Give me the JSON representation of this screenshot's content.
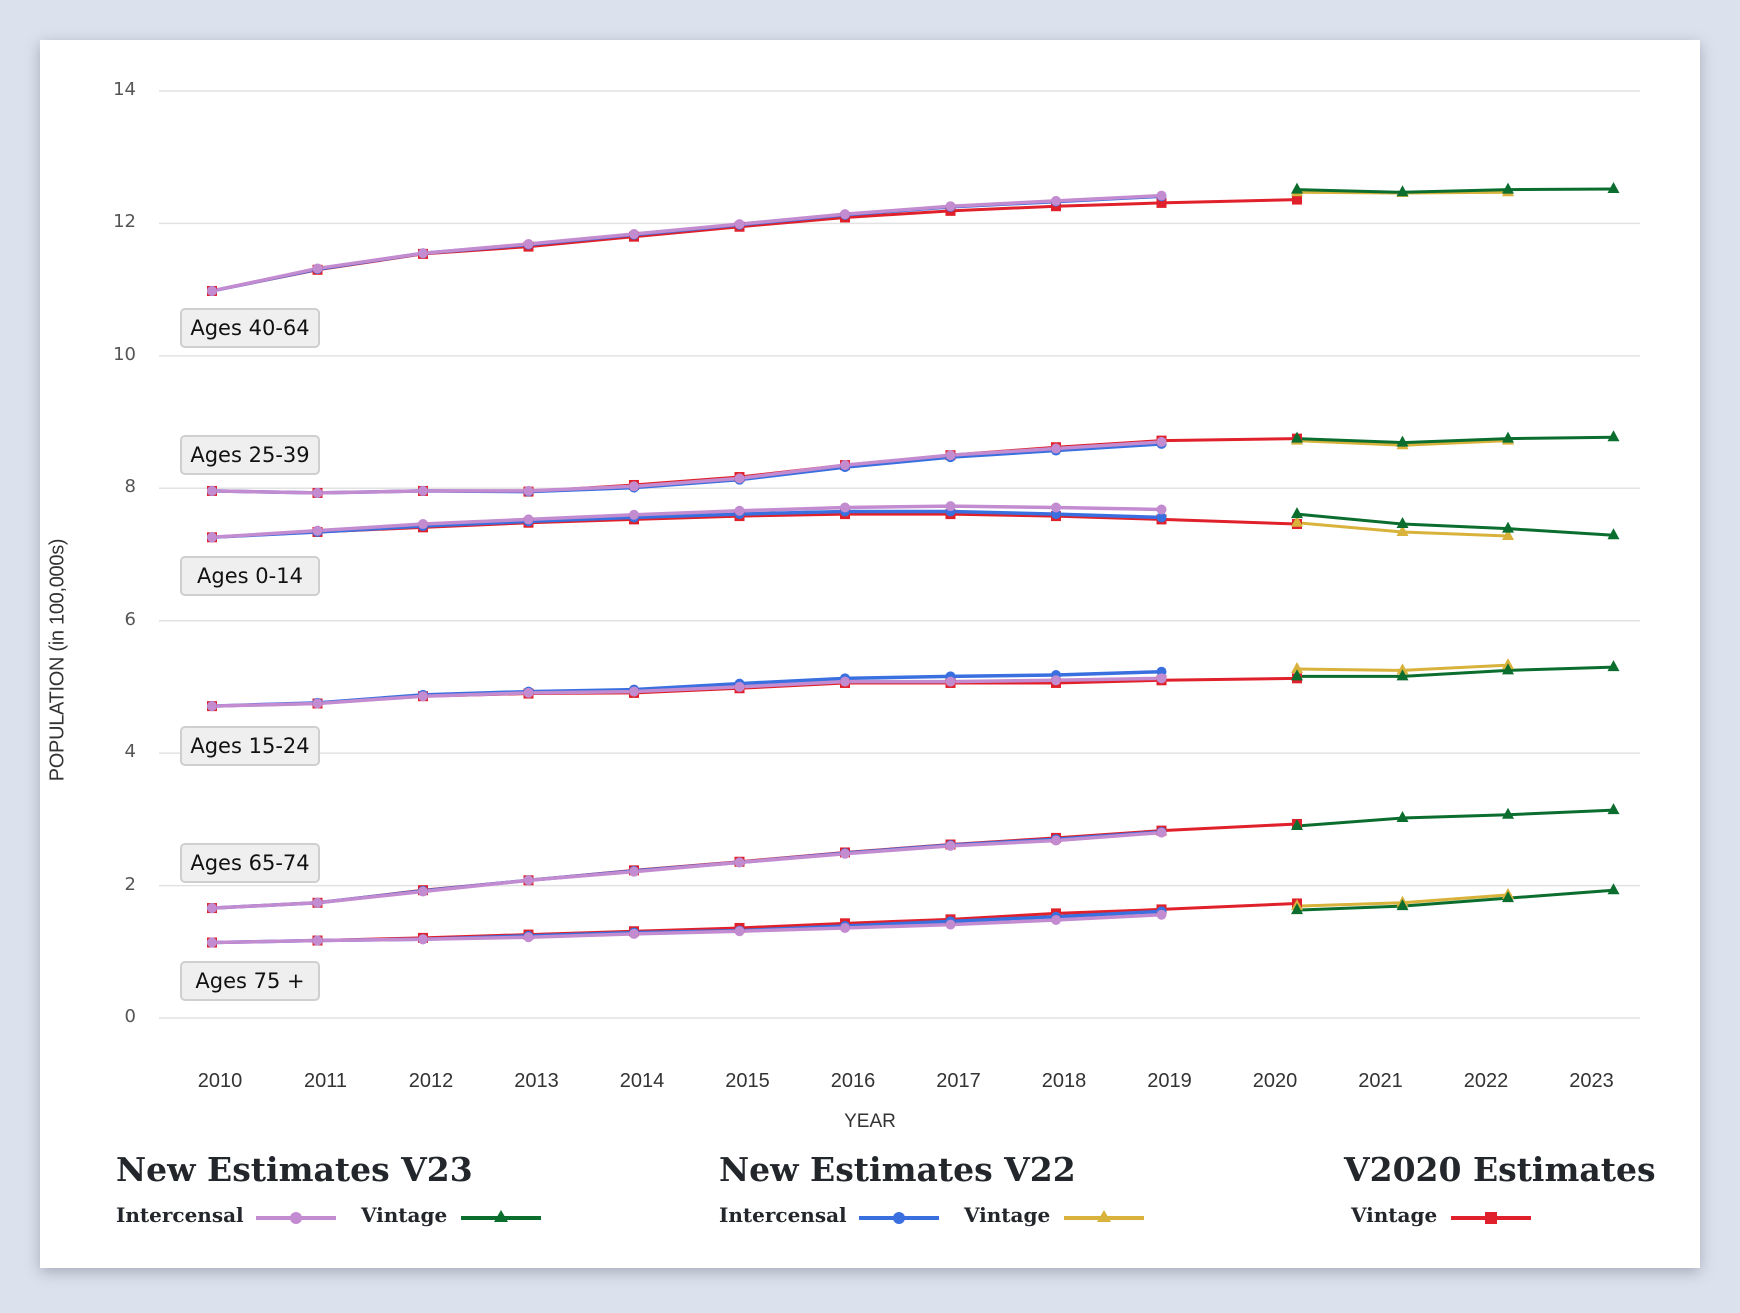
{
  "chart_data": {
    "type": "line",
    "title": "",
    "xlabel": "YEAR",
    "ylabel": "POPULATION (in 100,000s)",
    "ylim": [
      0,
      14
    ],
    "yticks": [
      0,
      2,
      4,
      6,
      8,
      10,
      12,
      14
    ],
    "xticks": [
      2010,
      2011,
      2012,
      2013,
      2014,
      2015,
      2016,
      2017,
      2018,
      2019,
      2020,
      2021,
      2022,
      2023
    ],
    "grid": true,
    "legend_position": "bottom",
    "series_styles": {
      "v23_intercensal": {
        "name": "Intercensal",
        "group": "New Estimates V23",
        "color": "#c38bd0",
        "marker": "circle"
      },
      "v23_vintage": {
        "name": "Vintage",
        "group": "New Estimates V23",
        "color": "#0b6e2f",
        "marker": "triangle"
      },
      "v22_intercensal": {
        "name": "Intercensal",
        "group": "New Estimates V22",
        "color": "#3a6fe0",
        "marker": "circle"
      },
      "v22_vintage": {
        "name": "Vintage",
        "group": "New Estimates V22",
        "color": "#d8b23a",
        "marker": "triangle"
      },
      "v2020_vintage": {
        "name": "Vintage",
        "group": "V2020 Estimates",
        "color": "#e0202a",
        "marker": "square"
      }
    },
    "groups": [
      {
        "label": "Ages 40-64",
        "series": {
          "v2020_vintage": {
            "x": [
              2010,
              2011,
              2012,
              2013,
              2014,
              2015,
              2016,
              2017,
              2018,
              2019,
              2020
            ],
            "y": [
              10.98,
              11.3,
              11.54,
              11.65,
              11.8,
              11.95,
              12.09,
              12.19,
              12.26,
              12.31,
              12.36
            ]
          },
          "v22_intercensal": {
            "x": [
              2010,
              2011,
              2012,
              2013,
              2014,
              2015,
              2016,
              2017,
              2018,
              2019
            ],
            "y": [
              10.98,
              11.31,
              11.55,
              11.68,
              11.83,
              11.98,
              12.13,
              12.25,
              12.33,
              12.41
            ]
          },
          "v23_intercensal": {
            "x": [
              2010,
              2011,
              2012,
              2013,
              2014,
              2015,
              2016,
              2017,
              2018,
              2019
            ],
            "y": [
              10.98,
              11.32,
              11.55,
              11.69,
              11.84,
              11.99,
              12.14,
              12.26,
              12.34,
              12.42
            ]
          },
          "v22_vintage": {
            "x": [
              2020,
              2021,
              2022
            ],
            "y": [
              12.47,
              12.46,
              12.47
            ]
          },
          "v23_vintage": {
            "x": [
              2020,
              2021,
              2022,
              2023
            ],
            "y": [
              12.51,
              12.47,
              12.51,
              12.52
            ]
          }
        }
      },
      {
        "label": "Ages 25-39",
        "series": {
          "v2020_vintage": {
            "x": [
              2010,
              2011,
              2012,
              2013,
              2014,
              2015,
              2016,
              2017,
              2018,
              2019,
              2020
            ],
            "y": [
              7.96,
              7.93,
              7.96,
              7.95,
              8.05,
              8.17,
              8.35,
              8.5,
              8.62,
              8.72,
              8.75
            ]
          },
          "v22_intercensal": {
            "x": [
              2010,
              2011,
              2012,
              2013,
              2014,
              2015,
              2016,
              2017,
              2018,
              2019
            ],
            "y": [
              7.96,
              7.93,
              7.96,
              7.95,
              8.01,
              8.13,
              8.32,
              8.47,
              8.57,
              8.67
            ]
          },
          "v23_intercensal": {
            "x": [
              2010,
              2011,
              2012,
              2013,
              2014,
              2015,
              2016,
              2017,
              2018,
              2019
            ],
            "y": [
              7.96,
              7.93,
              7.96,
              7.96,
              8.03,
              8.15,
              8.35,
              8.5,
              8.6,
              8.7
            ]
          },
          "v22_vintage": {
            "x": [
              2020,
              2021,
              2022
            ],
            "y": [
              8.72,
              8.65,
              8.72
            ]
          },
          "v23_vintage": {
            "x": [
              2020,
              2021,
              2022,
              2023
            ],
            "y": [
              8.75,
              8.69,
              8.75,
              8.77
            ]
          }
        }
      },
      {
        "label": "Ages 0-14",
        "series": {
          "v2020_vintage": {
            "x": [
              2010,
              2011,
              2012,
              2013,
              2014,
              2015,
              2016,
              2017,
              2018,
              2019,
              2020
            ],
            "y": [
              7.26,
              7.34,
              7.41,
              7.48,
              7.53,
              7.58,
              7.61,
              7.61,
              7.58,
              7.53,
              7.46
            ]
          },
          "v22_intercensal": {
            "x": [
              2010,
              2011,
              2012,
              2013,
              2014,
              2015,
              2016,
              2017,
              2018,
              2019
            ],
            "y": [
              7.26,
              7.34,
              7.43,
              7.5,
              7.56,
              7.61,
              7.65,
              7.65,
              7.61,
              7.56
            ]
          },
          "v23_intercensal": {
            "x": [
              2010,
              2011,
              2012,
              2013,
              2014,
              2015,
              2016,
              2017,
              2018,
              2019
            ],
            "y": [
              7.26,
              7.36,
              7.46,
              7.53,
              7.6,
              7.66,
              7.71,
              7.73,
              7.71,
              7.68
            ]
          },
          "v22_vintage": {
            "x": [
              2020,
              2021,
              2022
            ],
            "y": [
              7.48,
              7.34,
              7.28
            ]
          },
          "v23_vintage": {
            "x": [
              2020,
              2021,
              2022,
              2023
            ],
            "y": [
              7.61,
              7.46,
              7.39,
              7.29
            ]
          }
        }
      },
      {
        "label": "Ages 15-24",
        "series": {
          "v2020_vintage": {
            "x": [
              2010,
              2011,
              2012,
              2013,
              2014,
              2015,
              2016,
              2017,
              2018,
              2019,
              2020
            ],
            "y": [
              4.71,
              4.75,
              4.86,
              4.9,
              4.91,
              4.98,
              5.06,
              5.06,
              5.06,
              5.1,
              5.13
            ]
          },
          "v22_intercensal": {
            "x": [
              2010,
              2011,
              2012,
              2013,
              2014,
              2015,
              2016,
              2017,
              2018,
              2019
            ],
            "y": [
              4.71,
              4.76,
              4.88,
              4.93,
              4.96,
              5.05,
              5.13,
              5.16,
              5.18,
              5.23
            ]
          },
          "v23_intercensal": {
            "x": [
              2010,
              2011,
              2012,
              2013,
              2014,
              2015,
              2016,
              2017,
              2018,
              2019
            ],
            "y": [
              4.71,
              4.75,
              4.86,
              4.91,
              4.93,
              5.0,
              5.08,
              5.08,
              5.1,
              5.13
            ]
          },
          "v22_vintage": {
            "x": [
              2020,
              2021,
              2022
            ],
            "y": [
              5.27,
              5.25,
              5.33
            ]
          },
          "v23_vintage": {
            "x": [
              2020,
              2021,
              2022,
              2023
            ],
            "y": [
              5.16,
              5.16,
              5.25,
              5.3
            ]
          }
        }
      },
      {
        "label": "Ages 65-74",
        "series": {
          "v2020_vintage": {
            "x": [
              2010,
              2011,
              2012,
              2013,
              2014,
              2015,
              2016,
              2017,
              2018,
              2019,
              2020
            ],
            "y": [
              1.66,
              1.74,
              1.93,
              2.08,
              2.23,
              2.36,
              2.5,
              2.62,
              2.72,
              2.83,
              2.93
            ]
          },
          "v22_intercensal": {
            "x": [
              2010,
              2011,
              2012,
              2013,
              2014,
              2015,
              2016,
              2017,
              2018,
              2019
            ],
            "y": [
              1.66,
              1.74,
              1.92,
              2.08,
              2.22,
              2.35,
              2.49,
              2.61,
              2.7,
              2.81
            ]
          },
          "v23_intercensal": {
            "x": [
              2010,
              2011,
              2012,
              2013,
              2014,
              2015,
              2016,
              2017,
              2018,
              2019
            ],
            "y": [
              1.66,
              1.74,
              1.91,
              2.08,
              2.21,
              2.35,
              2.48,
              2.6,
              2.68,
              2.8
            ]
          },
          "v23_vintage": {
            "x": [
              2020,
              2021,
              2022,
              2023
            ],
            "y": [
              2.9,
              3.02,
              3.07,
              3.14
            ]
          }
        }
      },
      {
        "label": "Ages 75 +",
        "series": {
          "v2020_vintage": {
            "x": [
              2010,
              2011,
              2012,
              2013,
              2014,
              2015,
              2016,
              2017,
              2018,
              2019,
              2020
            ],
            "y": [
              1.14,
              1.17,
              1.21,
              1.26,
              1.31,
              1.36,
              1.43,
              1.49,
              1.58,
              1.64,
              1.73
            ]
          },
          "v22_intercensal": {
            "x": [
              2010,
              2011,
              2012,
              2013,
              2014,
              2015,
              2016,
              2017,
              2018,
              2019
            ],
            "y": [
              1.14,
              1.17,
              1.19,
              1.24,
              1.29,
              1.32,
              1.39,
              1.46,
              1.53,
              1.61
            ]
          },
          "v23_intercensal": {
            "x": [
              2010,
              2011,
              2012,
              2013,
              2014,
              2015,
              2016,
              2017,
              2018,
              2019
            ],
            "y": [
              1.14,
              1.17,
              1.19,
              1.22,
              1.27,
              1.31,
              1.36,
              1.41,
              1.48,
              1.56
            ]
          },
          "v22_vintage": {
            "x": [
              2020,
              2021,
              2022
            ],
            "y": [
              1.69,
              1.74,
              1.86
            ]
          },
          "v23_vintage": {
            "x": [
              2020,
              2021,
              2022,
              2023
            ],
            "y": [
              1.63,
              1.69,
              1.81,
              1.93
            ]
          }
        }
      }
    ]
  },
  "legend": {
    "v23": {
      "title": "New Estimates V23",
      "intercensal": "Intercensal",
      "vintage": "Vintage"
    },
    "v22": {
      "title": "New Estimates V22",
      "intercensal": "Intercensal",
      "vintage": "Vintage"
    },
    "v2020": {
      "title": "V2020 Estimates",
      "vintage": "Vintage"
    }
  }
}
